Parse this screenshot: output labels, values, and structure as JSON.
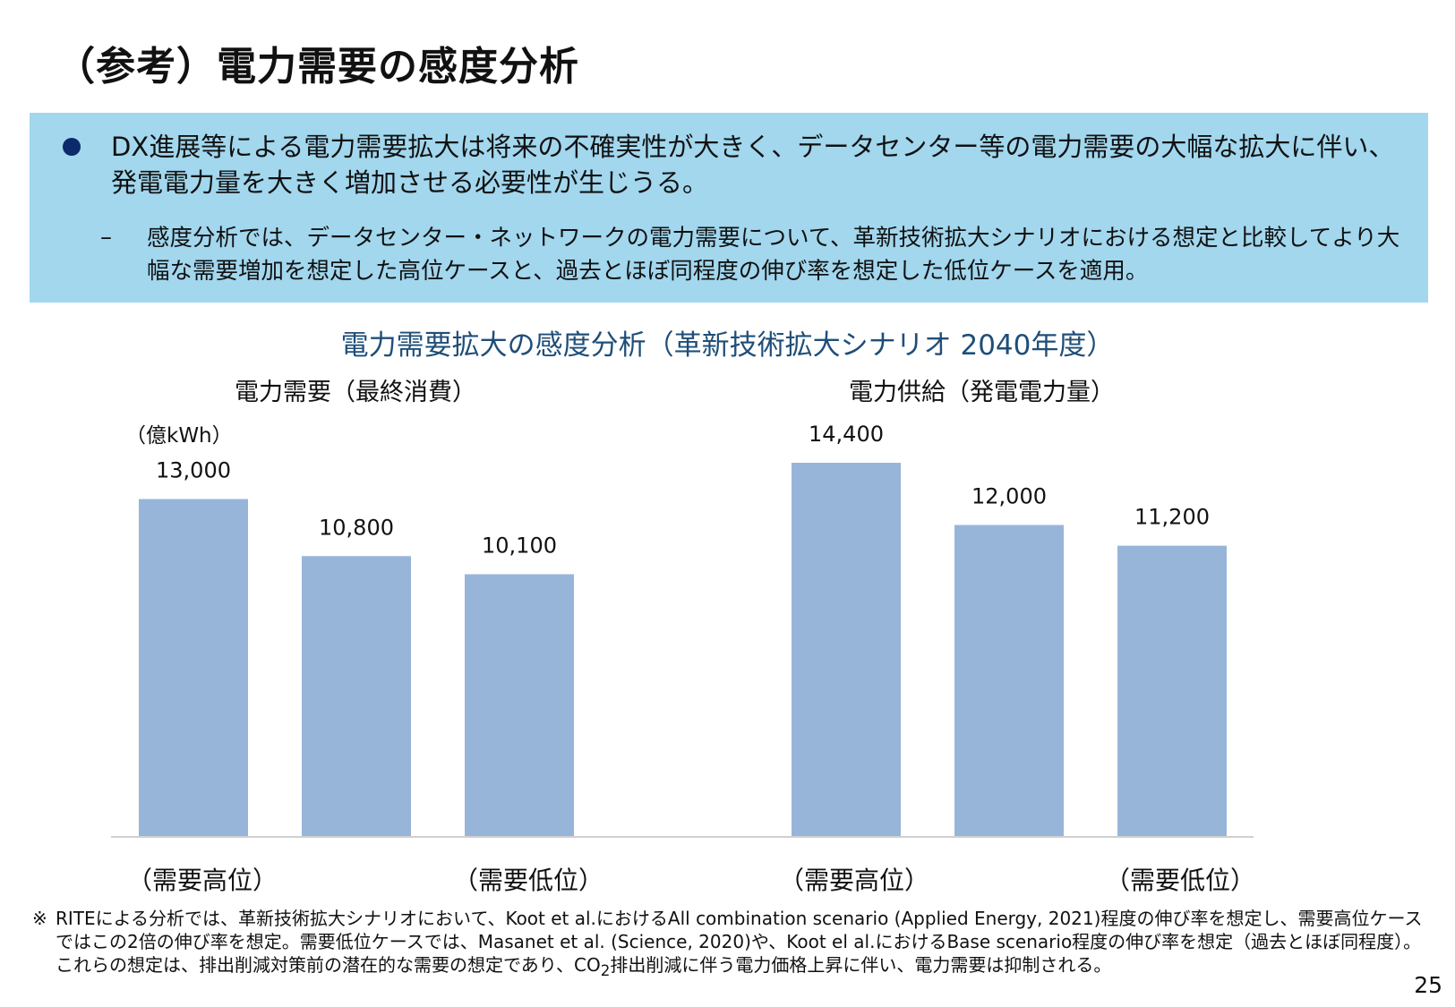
{
  "slide": {
    "title": "（参考）電力需要の感度分析",
    "page_number": "25"
  },
  "summary": {
    "bullet": "DX進展等による電力需要拡大は将来の不確実性が大きく、データセンター等の電力需要の大幅な拡大に伴い、発電電力量を大きく増加させる必要性が生じうる。",
    "sub_dash": "–",
    "sub_point": "感度分析では、データセンター・ネットワークの電力需要について、革新技術拡大シナリオにおける想定と比較してより大幅な需要増加を想定した高位ケースと、過去とほぼ同程度の伸び率を想定した低位ケースを適用。"
  },
  "chart_data": {
    "type": "bar",
    "title": "電力需要拡大の感度分析（革新技術拡大シナリオ 2040年度）",
    "unit": "（億kWh）",
    "bar_color": "#97b5d9",
    "panels": [
      {
        "title": "電力需要（最終消費）",
        "categories": [
          "（需要高位）",
          "",
          "（需要低位）"
        ],
        "values": [
          13000,
          10800,
          10100
        ],
        "value_labels": [
          "13,000",
          "10,800",
          "10,100"
        ]
      },
      {
        "title": "電力供給（発電電力量）",
        "categories": [
          "（需要高位）",
          "",
          "（需要低位）"
        ],
        "values": [
          14400,
          12000,
          11200
        ],
        "value_labels": [
          "14,400",
          "12,000",
          "11,200"
        ]
      }
    ],
    "ylim": [
      0,
      14400
    ]
  },
  "footnote": {
    "mark": "※",
    "pre": "RITEによる分析では、革新技術拡大シナリオにおいて、Koot et al.におけるAll combination scenario (Applied Energy, 2021)程度の伸び率を想定し、需要高位ケースではこの2倍の伸び率を想定。需要低位ケースでは、Masanet et al. (Science, 2020)や、Koot el al.におけるBase scenario程度の伸び率を想定（過去とほぼ同程度）。これらの想定は、排出削減対策前の潜在的な需要の想定であり、CO",
    "subscript": "2",
    "post": "排出削減に伴う電力価格上昇に伴い、電力需要は抑制される。"
  }
}
